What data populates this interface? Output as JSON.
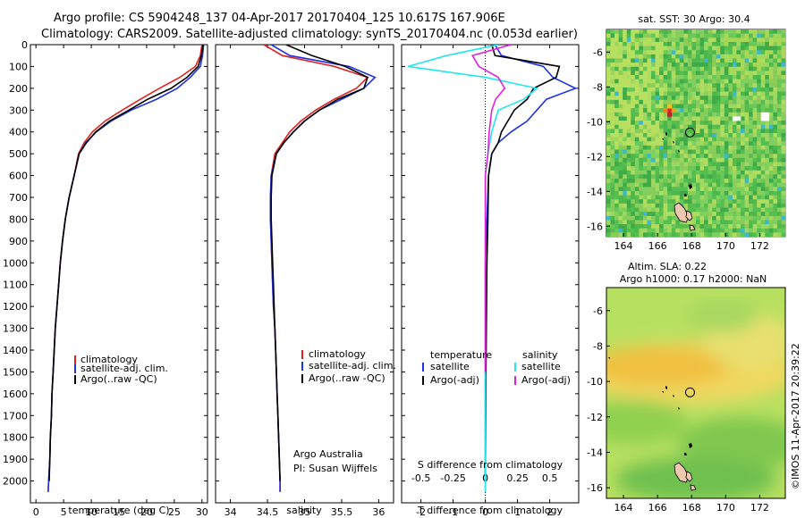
{
  "header": {
    "line1": "Argo profile: CS 5904248_137 04-Apr-2017 20170404_125 10.617S 167.906E",
    "line2": "Climatology: CARS2009. Satellite-adjusted climatology: synTS_20170404.nc (0.053d earlier)"
  },
  "colors": {
    "climatology": "#e02020",
    "satellite": "#1e32e6",
    "argo": "#000000",
    "sal_satellite": "#20e6f0",
    "sal_argo": "#e020e0"
  },
  "chart_data": [
    {
      "type": "line",
      "name": "temperature",
      "xlabel": "temperature (deg C)",
      "ylim": [
        2100,
        0
      ],
      "xlim": [
        -1,
        31
      ],
      "xticks": [
        0,
        5,
        10,
        15,
        20,
        25,
        30
      ],
      "yticks": [
        0,
        100,
        200,
        300,
        400,
        500,
        600,
        700,
        800,
        900,
        1000,
        1100,
        1200,
        1300,
        1400,
        1500,
        1600,
        1700,
        1800,
        1900,
        2000
      ],
      "legend": [
        "climatology",
        "satellite-adj. clim.",
        "Argo(..raw -QC)"
      ],
      "legend_position": "lower-center",
      "series": [
        {
          "name": "climatology",
          "points": [
            [
              30.0,
              0
            ],
            [
              29.7,
              50
            ],
            [
              28.8,
              100
            ],
            [
              26.0,
              150
            ],
            [
              22.3,
              200
            ],
            [
              18.9,
              250
            ],
            [
              15.6,
              300
            ],
            [
              12.5,
              350
            ],
            [
              10.2,
              400
            ],
            [
              8.7,
              450
            ],
            [
              7.7,
              500
            ],
            [
              6.9,
              600
            ],
            [
              6.0,
              700
            ],
            [
              5.3,
              800
            ],
            [
              4.8,
              900
            ],
            [
              4.4,
              1000
            ],
            [
              4.1,
              1100
            ],
            [
              3.8,
              1200
            ],
            [
              3.5,
              1300
            ],
            [
              3.3,
              1400
            ],
            [
              3.1,
              1500
            ],
            [
              2.9,
              1600
            ],
            [
              2.8,
              1700
            ],
            [
              2.6,
              1800
            ],
            [
              2.5,
              1900
            ],
            [
              2.3,
              2000
            ],
            [
              2.2,
              2050
            ]
          ]
        },
        {
          "name": "satellite-adj. clim.",
          "points": [
            [
              30.3,
              0
            ],
            [
              30.1,
              50
            ],
            [
              29.7,
              100
            ],
            [
              27.9,
              150
            ],
            [
              25.5,
              200
            ],
            [
              21.8,
              250
            ],
            [
              17.2,
              300
            ],
            [
              13.6,
              350
            ],
            [
              10.9,
              400
            ],
            [
              9.0,
              450
            ],
            [
              7.8,
              500
            ],
            [
              6.9,
              600
            ],
            [
              6.0,
              700
            ],
            [
              5.3,
              800
            ],
            [
              4.8,
              900
            ],
            [
              4.4,
              1000
            ],
            [
              4.1,
              1100
            ],
            [
              3.8,
              1200
            ],
            [
              3.5,
              1300
            ],
            [
              3.3,
              1400
            ],
            [
              3.1,
              1500
            ],
            [
              2.9,
              1600
            ],
            [
              2.8,
              1700
            ],
            [
              2.6,
              1800
            ],
            [
              2.5,
              1900
            ],
            [
              2.3,
              2000
            ],
            [
              2.2,
              2050
            ]
          ]
        },
        {
          "name": "Argo(..raw -QC)",
          "points": [
            [
              30.2,
              0
            ],
            [
              29.9,
              50
            ],
            [
              29.3,
              100
            ],
            [
              27.3,
              150
            ],
            [
              24.4,
              200
            ],
            [
              20.2,
              250
            ],
            [
              16.8,
              300
            ],
            [
              13.3,
              350
            ],
            [
              10.8,
              400
            ],
            [
              9.1,
              450
            ],
            [
              7.8,
              500
            ],
            [
              6.9,
              600
            ],
            [
              6.0,
              700
            ],
            [
              5.3,
              800
            ],
            [
              4.8,
              900
            ],
            [
              4.4,
              1000
            ],
            [
              4.1,
              1100
            ],
            [
              3.8,
              1200
            ],
            [
              3.5,
              1300
            ],
            [
              3.3,
              1400
            ],
            [
              3.1,
              1500
            ],
            [
              2.9,
              1600
            ],
            [
              2.8,
              1700
            ],
            [
              2.6,
              1800
            ],
            [
              2.5,
              1900
            ],
            [
              2.4,
              2000
            ]
          ]
        }
      ]
    },
    {
      "type": "line",
      "name": "salinity",
      "xlabel": "salinity",
      "ylim": [
        2100,
        0
      ],
      "xlim": [
        33.8,
        36.2
      ],
      "xticks": [
        34,
        34.5,
        35,
        35.5,
        36
      ],
      "legend": [
        "climatology",
        "satellite-adj. clim.",
        "Argo(..raw -QC)"
      ],
      "legend_position": "lower-center",
      "annotations": [
        "Argo Australia",
        "PI: Susan Wijffels"
      ],
      "series": [
        {
          "name": "climatology",
          "points": [
            [
              34.45,
              0
            ],
            [
              34.7,
              50
            ],
            [
              35.4,
              100
            ],
            [
              35.85,
              150
            ],
            [
              35.7,
              200
            ],
            [
              35.4,
              250
            ],
            [
              35.15,
              300
            ],
            [
              34.95,
              350
            ],
            [
              34.8,
              400
            ],
            [
              34.7,
              450
            ],
            [
              34.6,
              500
            ],
            [
              34.55,
              600
            ],
            [
              34.54,
              700
            ],
            [
              34.54,
              800
            ],
            [
              34.55,
              900
            ],
            [
              34.56,
              1000
            ],
            [
              34.57,
              1100
            ],
            [
              34.58,
              1200
            ],
            [
              34.6,
              1300
            ],
            [
              34.61,
              1400
            ],
            [
              34.62,
              1500
            ],
            [
              34.63,
              1600
            ],
            [
              34.64,
              1700
            ],
            [
              34.65,
              1800
            ],
            [
              34.66,
              1900
            ],
            [
              34.67,
              2000
            ],
            [
              34.67,
              2050
            ]
          ]
        },
        {
          "name": "satellite-adj. clim.",
          "points": [
            [
              34.55,
              0
            ],
            [
              34.8,
              50
            ],
            [
              35.6,
              100
            ],
            [
              35.95,
              150
            ],
            [
              35.8,
              200
            ],
            [
              35.5,
              250
            ],
            [
              35.2,
              300
            ],
            [
              35.0,
              350
            ],
            [
              34.85,
              400
            ],
            [
              34.72,
              450
            ],
            [
              34.62,
              500
            ],
            [
              34.55,
              600
            ],
            [
              34.54,
              700
            ],
            [
              34.54,
              800
            ],
            [
              34.55,
              900
            ],
            [
              34.56,
              1000
            ],
            [
              34.57,
              1100
            ],
            [
              34.58,
              1200
            ],
            [
              34.6,
              1300
            ],
            [
              34.61,
              1400
            ],
            [
              34.62,
              1500
            ],
            [
              34.63,
              1600
            ],
            [
              34.64,
              1700
            ],
            [
              34.65,
              1800
            ],
            [
              34.66,
              1900
            ],
            [
              34.67,
              2000
            ],
            [
              34.67,
              2050
            ]
          ]
        },
        {
          "name": "Argo(..raw -QC)",
          "points": [
            [
              34.75,
              0
            ],
            [
              35.1,
              50
            ],
            [
              35.55,
              100
            ],
            [
              35.85,
              150
            ],
            [
              35.8,
              200
            ],
            [
              35.45,
              250
            ],
            [
              35.2,
              300
            ],
            [
              35.0,
              350
            ],
            [
              34.85,
              400
            ],
            [
              34.72,
              450
            ],
            [
              34.62,
              500
            ],
            [
              34.56,
              600
            ],
            [
              34.55,
              700
            ],
            [
              34.55,
              800
            ],
            [
              34.56,
              900
            ],
            [
              34.57,
              1000
            ],
            [
              34.58,
              1100
            ],
            [
              34.59,
              1200
            ],
            [
              34.6,
              1300
            ],
            [
              34.61,
              1400
            ],
            [
              34.62,
              1500
            ],
            [
              34.63,
              1600
            ],
            [
              34.64,
              1700
            ],
            [
              34.65,
              1800
            ],
            [
              34.66,
              1900
            ],
            [
              34.67,
              2000
            ]
          ]
        }
      ]
    },
    {
      "type": "line",
      "name": "differences",
      "xlabel": "T difference from climatology",
      "xlabel_top": "S difference from climatology",
      "ylim": [
        2100,
        0
      ],
      "xlim": [
        -2.6,
        2.9
      ],
      "xticks": [
        -2,
        -1,
        0,
        1,
        2
      ],
      "s_xlim": [
        -0.65,
        0.725
      ],
      "s_xticks": [
        -0.5,
        -0.25,
        0,
        0.25,
        0.5
      ],
      "legend_temperature": {
        "header": "temperature",
        "items": [
          "satellite",
          "Argo(-adj)"
        ]
      },
      "legend_salinity": {
        "header": "salinity",
        "items": [
          "satellite",
          "Argo(-adj)"
        ]
      },
      "series": [
        {
          "name": "T satellite",
          "axis": "T",
          "points": [
            [
              0.3,
              0
            ],
            [
              0.5,
              50
            ],
            [
              1.8,
              100
            ],
            [
              2.1,
              150
            ],
            [
              2.8,
              200
            ],
            [
              1.9,
              250
            ],
            [
              1.6,
              300
            ],
            [
              1.3,
              350
            ],
            [
              0.8,
              400
            ],
            [
              0.4,
              450
            ],
            [
              0.2,
              500
            ],
            [
              0.1,
              600
            ],
            [
              0.05,
              800
            ],
            [
              0.0,
              1000
            ],
            [
              0.0,
              1500
            ],
            [
              0.0,
              2000
            ]
          ]
        },
        {
          "name": "T Argo(-adj)",
          "axis": "T",
          "points": [
            [
              0.2,
              0
            ],
            [
              0.3,
              50
            ],
            [
              2.3,
              100
            ],
            [
              2.2,
              150
            ],
            [
              1.5,
              200
            ],
            [
              1.3,
              250
            ],
            [
              0.9,
              300
            ],
            [
              0.7,
              350
            ],
            [
              0.5,
              400
            ],
            [
              0.4,
              450
            ],
            [
              0.2,
              500
            ],
            [
              0.1,
              600
            ],
            [
              0.08,
              800
            ],
            [
              0.05,
              1000
            ],
            [
              0.02,
              1500
            ],
            [
              0.0,
              2000
            ]
          ]
        },
        {
          "name": "S satellite",
          "axis": "S",
          "points": [
            [
              0.1,
              0
            ],
            [
              -0.3,
              50
            ],
            [
              -0.6,
              100
            ],
            [
              0.0,
              150
            ],
            [
              0.4,
              200
            ],
            [
              0.3,
              250
            ],
            [
              0.1,
              300
            ],
            [
              0.05,
              400
            ],
            [
              0.02,
              500
            ],
            [
              0.0,
              600
            ],
            [
              0.0,
              1000
            ],
            [
              0.0,
              1500
            ],
            [
              0.0,
              2000
            ],
            [
              0.0,
              2050
            ]
          ]
        },
        {
          "name": "S Argo(-adj)",
          "axis": "S",
          "points": [
            [
              0.2,
              0
            ],
            [
              -0.1,
              50
            ],
            [
              -0.05,
              100
            ],
            [
              0.1,
              150
            ],
            [
              0.15,
              200
            ],
            [
              0.08,
              250
            ],
            [
              0.05,
              300
            ],
            [
              0.03,
              400
            ],
            [
              0.02,
              500
            ],
            [
              0.0,
              600
            ],
            [
              0.0,
              1000
            ],
            [
              0.0,
              1500
            ]
          ]
        }
      ]
    },
    {
      "type": "heatmap",
      "name": "sst_map",
      "title": "sat. SST: 30 Argo: 30.4",
      "xticks": [
        164,
        166,
        168,
        170,
        172
      ],
      "yticks": [
        -6,
        -8,
        -10,
        -12,
        -14,
        -16
      ],
      "xlim": [
        163,
        173.5
      ],
      "ylim": [
        -16.6,
        -4.7
      ],
      "argo_position": [
        167.906,
        -10.617
      ]
    },
    {
      "type": "heatmap",
      "name": "sla_map",
      "title": "Altim. SLA: 0.22",
      "subtitle": "Argo h1000: 0.17 h2000: NaN",
      "xticks": [
        164,
        166,
        168,
        170,
        172
      ],
      "yticks": [
        -6,
        -8,
        -10,
        -12,
        -14,
        -16
      ],
      "xlim": [
        163,
        173.5
      ],
      "ylim": [
        -16.6,
        -4.7
      ],
      "argo_position": [
        167.906,
        -10.617
      ]
    }
  ],
  "credit": "©IMOS 11-Apr-2017 20:39:22"
}
